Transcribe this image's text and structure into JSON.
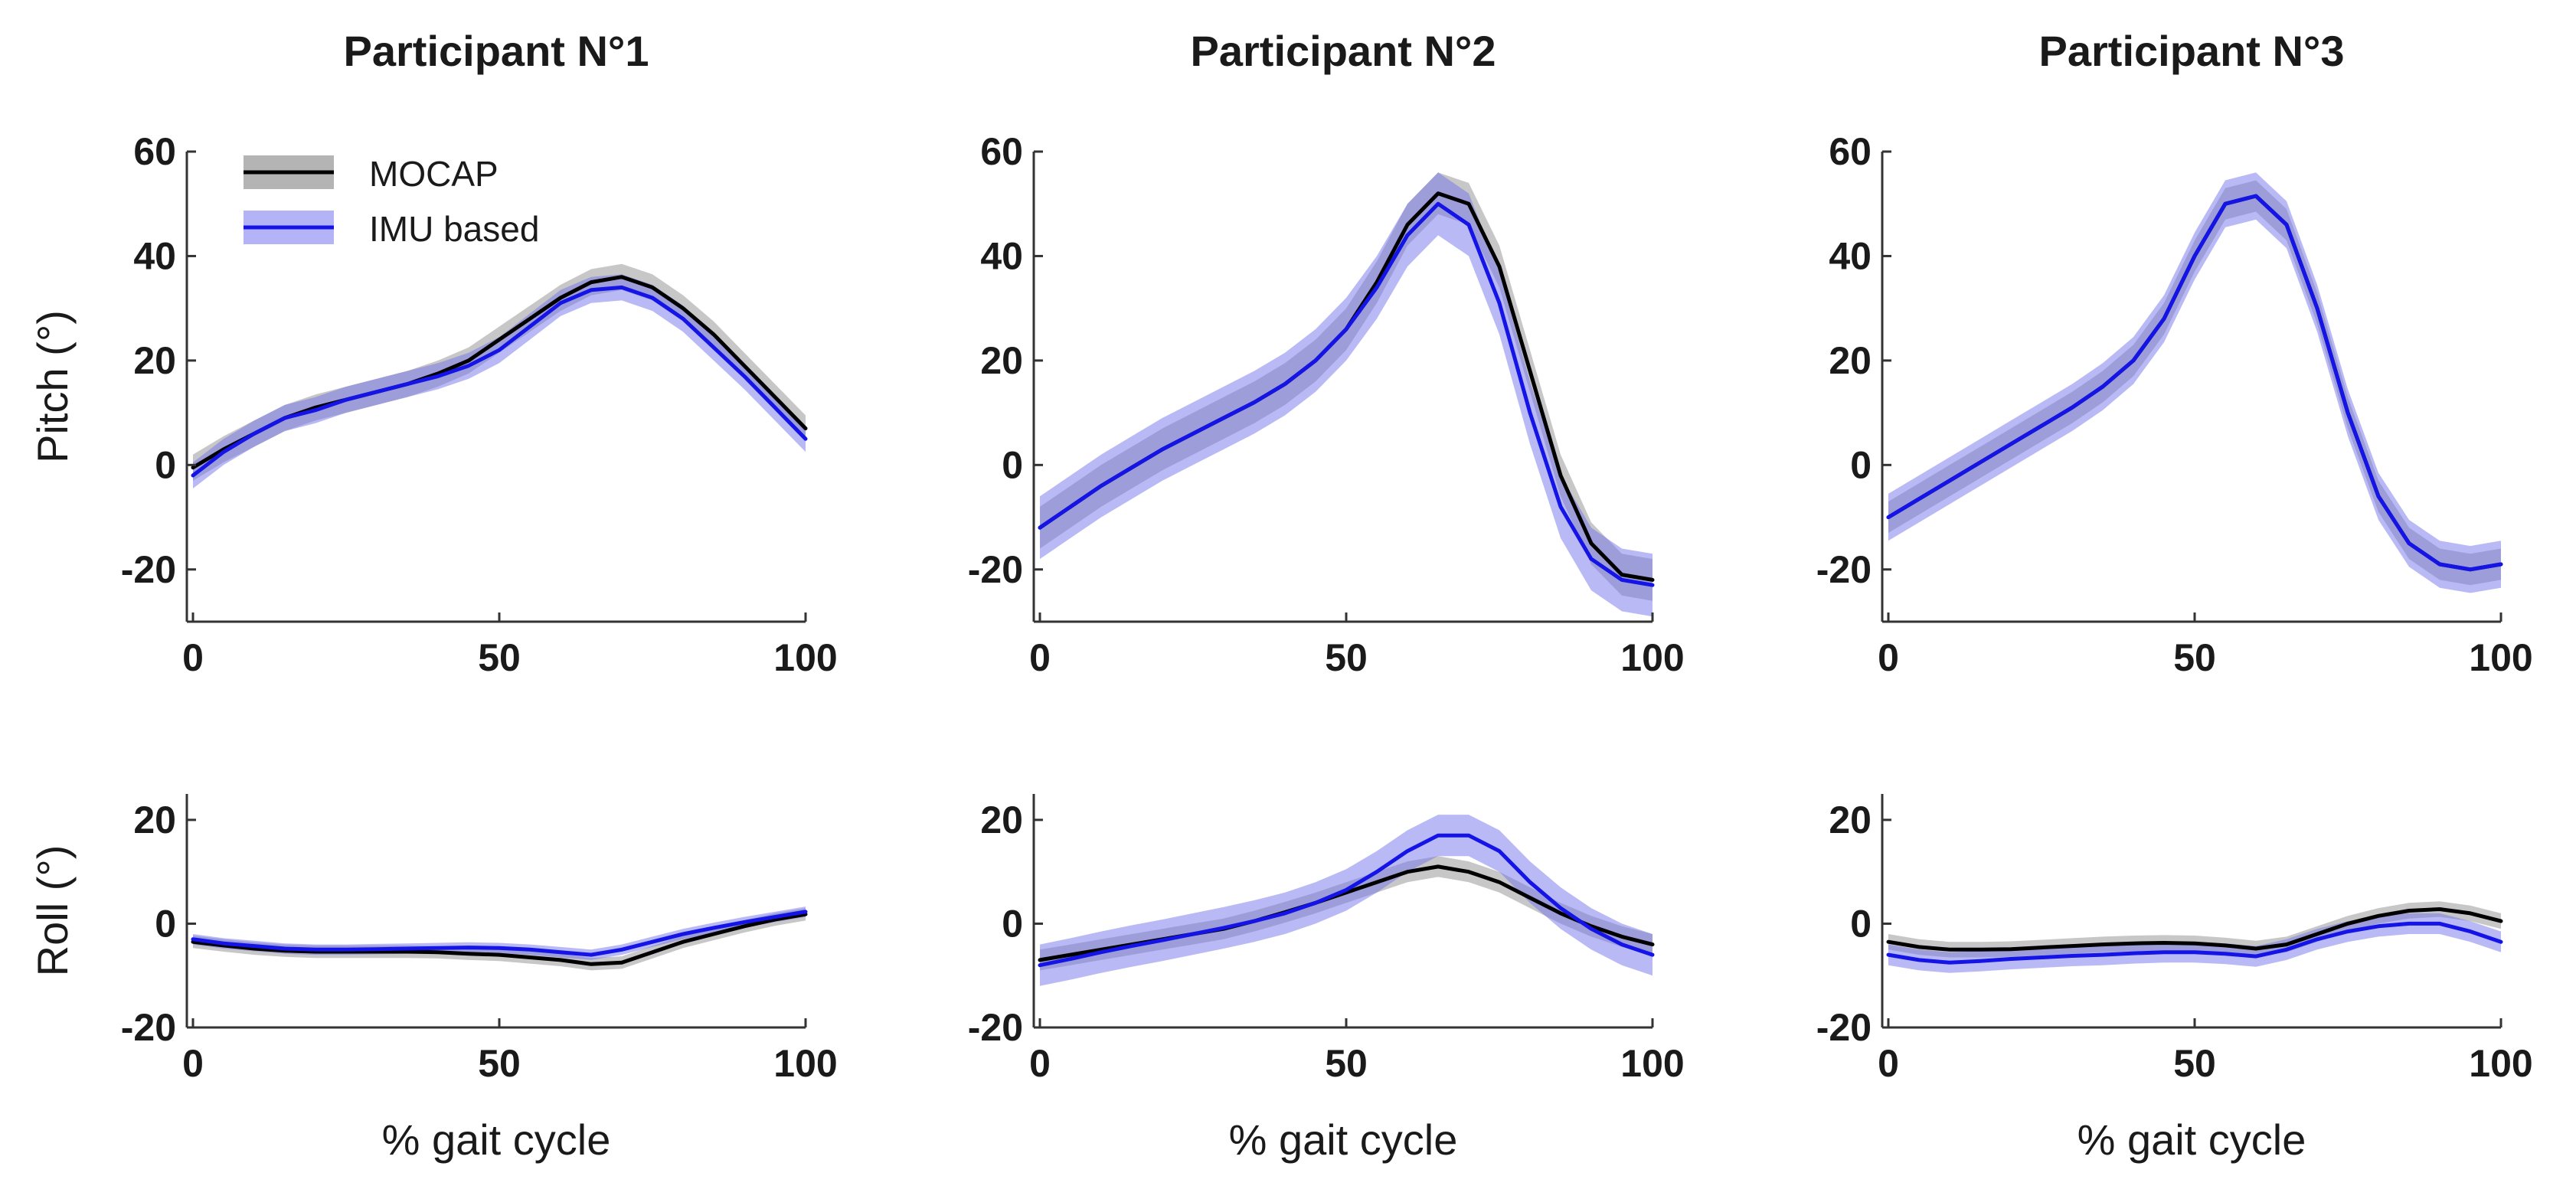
{
  "colors": {
    "mocap_line": "#000000",
    "mocap_band": "#b4b4b4",
    "imu_line": "#1414e6",
    "imu_band": "#7474ee",
    "axis": "#333333"
  },
  "legend": {
    "mocap": "MOCAP",
    "imu": "IMU based"
  },
  "chart_data": [
    {
      "type": "line",
      "panel": "participant-1-pitch",
      "title": "Participant N°1",
      "ylabel": "Pitch (°)",
      "xlabel": "",
      "xlim": [
        0,
        100
      ],
      "ylim": [
        -30,
        60
      ],
      "xticks": [
        0,
        50,
        100
      ],
      "yticks": [
        -20,
        0,
        20,
        40,
        60
      ],
      "x": [
        0,
        5,
        10,
        15,
        20,
        25,
        30,
        35,
        40,
        45,
        50,
        55,
        60,
        65,
        70,
        75,
        80,
        85,
        90,
        95,
        100
      ],
      "series": [
        {
          "name": "MOCAP",
          "band": 2.5,
          "values": [
            -0.5,
            3,
            6,
            9,
            11,
            12.5,
            14,
            15.5,
            17.5,
            20,
            24,
            28,
            32,
            35,
            36,
            34,
            30,
            25,
            19,
            13,
            7
          ]
        },
        {
          "name": "IMU based",
          "band": 2.5,
          "values": [
            -2,
            2.5,
            6,
            9,
            10.5,
            12.5,
            14,
            15.5,
            17,
            19,
            22,
            26.5,
            31,
            33.5,
            34,
            32,
            28,
            22.5,
            17,
            11,
            5
          ]
        }
      ]
    },
    {
      "type": "line",
      "panel": "participant-2-pitch",
      "title": "Participant N°2",
      "ylabel": "",
      "xlabel": "",
      "xlim": [
        0,
        100
      ],
      "ylim": [
        -30,
        60
      ],
      "xticks": [
        0,
        50,
        100
      ],
      "yticks": [
        -20,
        0,
        20,
        40,
        60
      ],
      "x": [
        0,
        5,
        10,
        15,
        20,
        25,
        30,
        35,
        40,
        45,
        50,
        55,
        60,
        65,
        70,
        75,
        80,
        85,
        90,
        95,
        100
      ],
      "series": [
        {
          "name": "MOCAP",
          "band": 4,
          "values": [
            -12,
            -8,
            -4,
            -0.5,
            3,
            6,
            9,
            12,
            15.5,
            20,
            26,
            35,
            46,
            52,
            50,
            38,
            18,
            -2,
            -15,
            -21,
            -22
          ]
        },
        {
          "name": "IMU based",
          "band": 6,
          "values": [
            -12,
            -8,
            -4,
            -0.5,
            3,
            6,
            9,
            12,
            15.5,
            20,
            26,
            34,
            44,
            50,
            46,
            31,
            10,
            -8,
            -18,
            -22,
            -23
          ]
        }
      ]
    },
    {
      "type": "line",
      "panel": "participant-3-pitch",
      "title": "Participant N°3",
      "ylabel": "",
      "xlabel": "",
      "xlim": [
        0,
        100
      ],
      "ylim": [
        -30,
        60
      ],
      "xticks": [
        0,
        50,
        100
      ],
      "yticks": [
        -20,
        0,
        20,
        40,
        60
      ],
      "x": [
        0,
        5,
        10,
        15,
        20,
        25,
        30,
        35,
        40,
        45,
        50,
        55,
        60,
        65,
        70,
        75,
        80,
        85,
        90,
        95,
        100
      ],
      "series": [
        {
          "name": "MOCAP",
          "band": 3,
          "values": [
            -10,
            -6.5,
            -3,
            0.5,
            4,
            7.5,
            11,
            15,
            20,
            28,
            40,
            50,
            51.5,
            46,
            30,
            10,
            -6,
            -15,
            -19,
            -20,
            -19
          ]
        },
        {
          "name": "IMU based",
          "band": 4.5,
          "values": [
            -10,
            -6.5,
            -3,
            0.5,
            4,
            7.5,
            11,
            15,
            20,
            28,
            40,
            50,
            51.5,
            46,
            30,
            10,
            -6,
            -15,
            -19,
            -20,
            -19
          ]
        }
      ]
    },
    {
      "type": "line",
      "panel": "participant-1-roll",
      "title": "",
      "ylabel": "Roll (°)",
      "xlabel": "% gait cycle",
      "xlim": [
        0,
        100
      ],
      "ylim": [
        -20,
        25
      ],
      "xticks": [
        0,
        50,
        100
      ],
      "yticks": [
        -20,
        0,
        20
      ],
      "x": [
        0,
        5,
        10,
        15,
        20,
        25,
        30,
        35,
        40,
        45,
        50,
        55,
        60,
        65,
        70,
        75,
        80,
        85,
        90,
        95,
        100
      ],
      "series": [
        {
          "name": "MOCAP",
          "band": 1.2,
          "values": [
            -3.5,
            -4.2,
            -4.8,
            -5.2,
            -5.4,
            -5.4,
            -5.4,
            -5.4,
            -5.5,
            -5.8,
            -6,
            -6.5,
            -7,
            -7.8,
            -7.5,
            -5.5,
            -3.5,
            -2,
            -0.5,
            0.8,
            1.8
          ]
        },
        {
          "name": "IMU based",
          "band": 1.0,
          "values": [
            -3,
            -3.8,
            -4.3,
            -4.8,
            -5,
            -5,
            -4.9,
            -4.8,
            -4.7,
            -4.6,
            -4.7,
            -5,
            -5.5,
            -6,
            -5,
            -3.5,
            -2,
            -0.8,
            0.3,
            1.3,
            2.3
          ]
        }
      ]
    },
    {
      "type": "line",
      "panel": "participant-2-roll",
      "title": "",
      "ylabel": "",
      "xlabel": "% gait cycle",
      "xlim": [
        0,
        100
      ],
      "ylim": [
        -20,
        25
      ],
      "xticks": [
        0,
        50,
        100
      ],
      "yticks": [
        -20,
        0,
        20
      ],
      "x": [
        0,
        5,
        10,
        15,
        20,
        25,
        30,
        35,
        40,
        45,
        50,
        55,
        60,
        65,
        70,
        75,
        80,
        85,
        90,
        95,
        100
      ],
      "series": [
        {
          "name": "MOCAP",
          "band": 2,
          "values": [
            -7,
            -6,
            -5,
            -4,
            -3,
            -2,
            -1,
            0.5,
            2.2,
            4,
            6,
            8,
            10,
            11,
            10,
            8,
            5,
            2,
            -0.5,
            -2.5,
            -4
          ]
        },
        {
          "name": "IMU based",
          "band": 4,
          "values": [
            -8,
            -6.8,
            -5.5,
            -4.3,
            -3.2,
            -2,
            -0.8,
            0.5,
            2,
            4,
            6.5,
            10,
            14,
            17,
            17,
            14,
            8,
            3,
            -1,
            -4,
            -6
          ]
        }
      ]
    },
    {
      "type": "line",
      "panel": "participant-3-roll",
      "title": "",
      "ylabel": "",
      "xlabel": "% gait cycle",
      "xlim": [
        0,
        100
      ],
      "ylim": [
        -20,
        25
      ],
      "xticks": [
        0,
        50,
        100
      ],
      "yticks": [
        -20,
        0,
        20
      ],
      "x": [
        0,
        5,
        10,
        15,
        20,
        25,
        30,
        35,
        40,
        45,
        50,
        55,
        60,
        65,
        70,
        75,
        80,
        85,
        90,
        95,
        100
      ],
      "series": [
        {
          "name": "MOCAP",
          "band": 1.5,
          "values": [
            -3.5,
            -4.5,
            -5,
            -5,
            -4.9,
            -4.6,
            -4.3,
            -4,
            -3.8,
            -3.7,
            -3.8,
            -4.2,
            -4.8,
            -4,
            -2,
            0,
            1.5,
            2.5,
            2.8,
            2,
            0.5
          ]
        },
        {
          "name": "IMU based",
          "band": 2,
          "values": [
            -6,
            -7,
            -7.5,
            -7.2,
            -6.8,
            -6.5,
            -6.2,
            -6,
            -5.7,
            -5.5,
            -5.5,
            -5.8,
            -6.3,
            -5,
            -3,
            -1.5,
            -0.5,
            0,
            0,
            -1.5,
            -3.5
          ]
        }
      ]
    }
  ]
}
